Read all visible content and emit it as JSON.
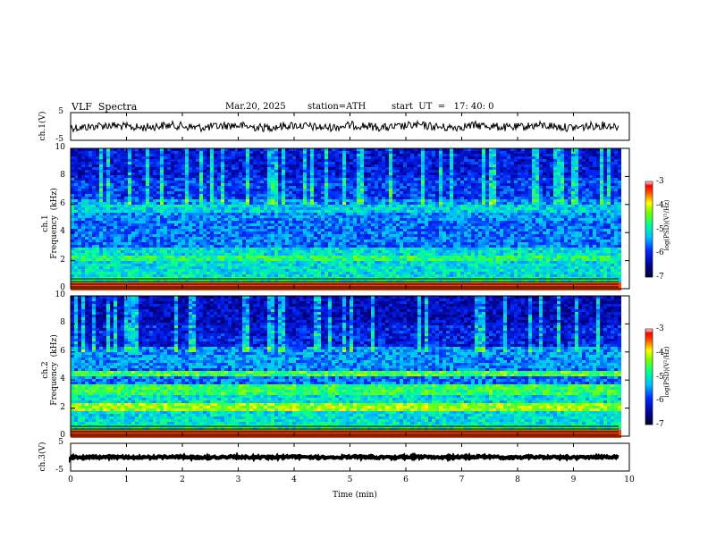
{
  "header": {
    "title": "VLF  Spectra",
    "date": "Mar.20, 2025",
    "station": "station=ATH",
    "start_ut": "start  UT  =   17: 40: 0"
  },
  "chart_data": [
    {
      "type": "line",
      "name": "ch1-waveform",
      "ylabel": "ch.1(V)",
      "ylim": [
        -5,
        5
      ],
      "y_ticks": [
        "5",
        "-5"
      ],
      "xlim": [
        0,
        10
      ],
      "approx_level": 0,
      "approx_amplitude": 0.6
    },
    {
      "type": "heatmap",
      "name": "ch1-spectrogram",
      "ylabel": "ch.1\nFrequency  (kHz)",
      "ylim": [
        0,
        10
      ],
      "y_ticks": [
        "10",
        "8",
        "6",
        "4",
        "2",
        "0"
      ],
      "xlim": [
        0,
        9.8
      ],
      "colorbar": {
        "label": "log(PSD)(V²/Hz)",
        "range": [
          -7,
          -3
        ],
        "ticks": [
          "-3",
          "-4",
          "-5",
          "-6",
          "-7"
        ]
      }
    },
    {
      "type": "heatmap",
      "name": "ch2-spectrogram",
      "ylabel": "ch.2\nFrequency  (kHz)",
      "ylim": [
        0,
        10
      ],
      "y_ticks": [
        "10",
        "8",
        "6",
        "4",
        "2",
        "0"
      ],
      "xlim": [
        0,
        9.8
      ],
      "colorbar": {
        "label": "log(PSD)(V²/Hz)",
        "range": [
          -7,
          -3
        ],
        "ticks": [
          "-3",
          "-4",
          "-5",
          "-6",
          "-7"
        ]
      }
    },
    {
      "type": "line",
      "name": "ch3-waveform",
      "ylabel": "ch.3(V)",
      "ylim": [
        -5,
        5
      ],
      "y_ticks": [
        "5",
        "-5"
      ],
      "xlim": [
        0,
        10
      ],
      "approx_level": 0,
      "approx_amplitude": 0.2
    }
  ],
  "x_axis": {
    "label": "Time  (min)",
    "ticks": [
      "0",
      "1",
      "2",
      "3",
      "4",
      "5",
      "6",
      "7",
      "8",
      "9",
      "10"
    ]
  },
  "colors": {
    "scale": [
      "#000000",
      "#0000ff",
      "#00c8ff",
      "#00ff80",
      "#ffff00",
      "#ff0000",
      "#ffffff"
    ]
  }
}
